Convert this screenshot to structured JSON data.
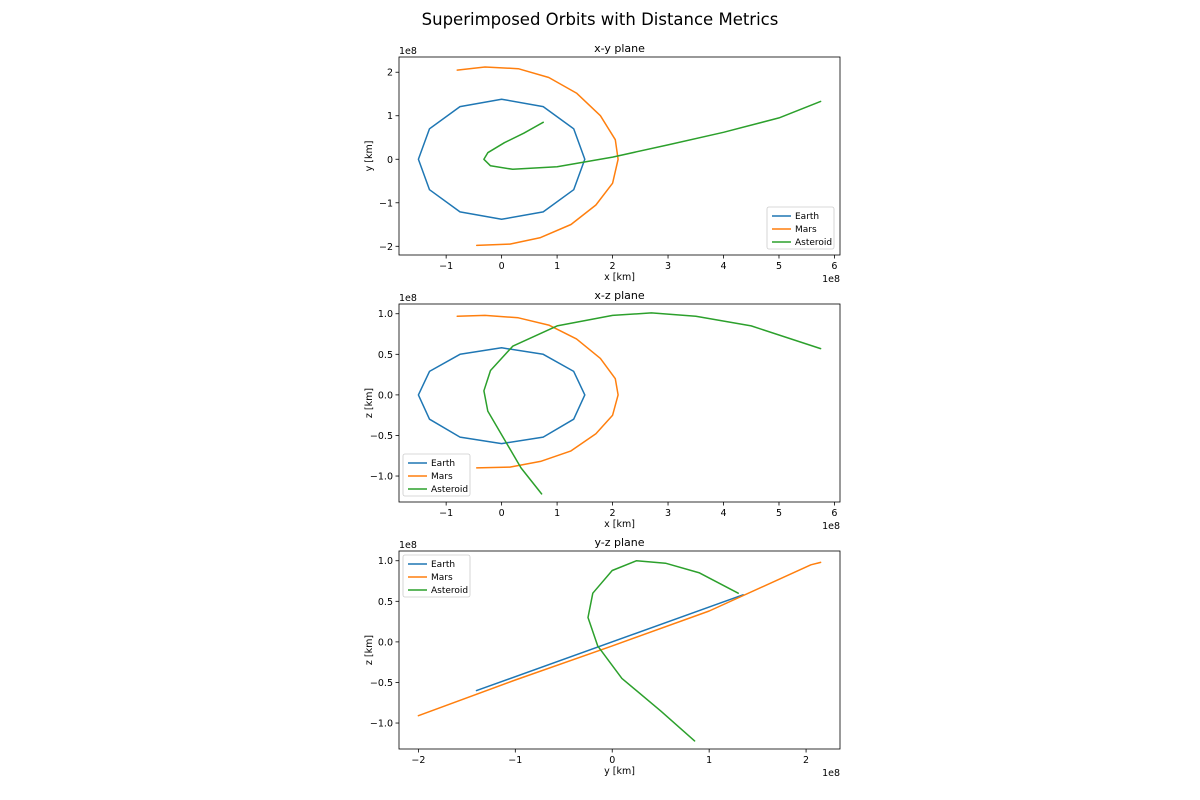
{
  "title": "Superimposed Orbits with Distance Metrics",
  "colors": {
    "Earth": "#1f77b4",
    "Mars": "#ff7f0e",
    "Asteroid": "#2ca02c"
  },
  "chart_data": [
    {
      "type": "line",
      "title": "x-y plane",
      "xlabel": "x [km]",
      "ylabel": "y [km]",
      "offset_label": "1e8",
      "x_offset_label": "1e8",
      "xlim": [
        -1.85,
        6.1
      ],
      "ylim": [
        -2.2,
        2.35
      ],
      "xticks": [
        -1,
        0,
        1,
        2,
        3,
        4,
        5,
        6
      ],
      "xtick_labels": [
        "−1",
        "0",
        "1",
        "2",
        "3",
        "4",
        "5",
        "6"
      ],
      "yticks": [
        -2,
        -1,
        0,
        1,
        2
      ],
      "ytick_labels": [
        "−2",
        "−1",
        "0",
        "1",
        "2"
      ],
      "legend": "lower-right",
      "grid": false,
      "series": [
        {
          "name": "Earth",
          "points": [
            [
              1.5,
              0
            ],
            [
              1.3,
              0.7
            ],
            [
              0.75,
              1.21
            ],
            [
              0,
              1.38
            ],
            [
              -0.75,
              1.21
            ],
            [
              -1.3,
              0.7
            ],
            [
              -1.5,
              0
            ],
            [
              -1.3,
              -0.7
            ],
            [
              -0.75,
              -1.21
            ],
            [
              0,
              -1.38
            ],
            [
              0.75,
              -1.21
            ],
            [
              1.3,
              -0.7
            ],
            [
              1.5,
              0
            ]
          ]
        },
        {
          "name": "Mars",
          "points": [
            [
              -0.8,
              2.05
            ],
            [
              -0.3,
              2.12
            ],
            [
              0.3,
              2.08
            ],
            [
              0.85,
              1.88
            ],
            [
              1.35,
              1.52
            ],
            [
              1.78,
              1.0
            ],
            [
              2.05,
              0.45
            ],
            [
              2.1,
              0
            ],
            [
              2.0,
              -0.55
            ],
            [
              1.7,
              -1.05
            ],
            [
              1.25,
              -1.5
            ],
            [
              0.7,
              -1.8
            ],
            [
              0.15,
              -1.95
            ],
            [
              -0.45,
              -1.98
            ]
          ]
        },
        {
          "name": "Asteroid",
          "points": [
            [
              0.75,
              0.85
            ],
            [
              0.4,
              0.6
            ],
            [
              0.05,
              0.38
            ],
            [
              -0.25,
              0.15
            ],
            [
              -0.32,
              0
            ],
            [
              -0.2,
              -0.15
            ],
            [
              0.2,
              -0.23
            ],
            [
              1.0,
              -0.17
            ],
            [
              2.0,
              0.05
            ],
            [
              3.0,
              0.33
            ],
            [
              4.0,
              0.62
            ],
            [
              5.0,
              0.95
            ],
            [
              5.75,
              1.33
            ]
          ]
        }
      ]
    },
    {
      "type": "line",
      "title": "x-z plane",
      "xlabel": "x [km]",
      "ylabel": "z [km]",
      "offset_label": "1e8",
      "x_offset_label": "1e8",
      "xlim": [
        -1.85,
        6.1
      ],
      "ylim": [
        -1.32,
        1.12
      ],
      "xticks": [
        -1,
        0,
        1,
        2,
        3,
        4,
        5,
        6
      ],
      "xtick_labels": [
        "−1",
        "0",
        "1",
        "2",
        "3",
        "4",
        "5",
        "6"
      ],
      "yticks": [
        -1.0,
        -0.5,
        0.0,
        0.5,
        1.0
      ],
      "ytick_labels": [
        "−1.0",
        "−0.5",
        "0.0",
        "0.5",
        "1.0"
      ],
      "legend": "lower-left",
      "grid": false,
      "series": [
        {
          "name": "Earth",
          "points": [
            [
              1.5,
              0
            ],
            [
              1.3,
              0.29
            ],
            [
              0.75,
              0.5
            ],
            [
              0,
              0.58
            ],
            [
              -0.75,
              0.5
            ],
            [
              -1.3,
              0.29
            ],
            [
              -1.5,
              0
            ],
            [
              -1.3,
              -0.3
            ],
            [
              -0.75,
              -0.52
            ],
            [
              0,
              -0.6
            ],
            [
              0.75,
              -0.52
            ],
            [
              1.3,
              -0.3
            ],
            [
              1.5,
              0
            ]
          ]
        },
        {
          "name": "Mars",
          "points": [
            [
              -0.8,
              0.97
            ],
            [
              -0.3,
              0.98
            ],
            [
              0.3,
              0.95
            ],
            [
              0.85,
              0.86
            ],
            [
              1.35,
              0.69
            ],
            [
              1.78,
              0.45
            ],
            [
              2.05,
              0.2
            ],
            [
              2.1,
              0
            ],
            [
              2.0,
              -0.25
            ],
            [
              1.7,
              -0.48
            ],
            [
              1.25,
              -0.69
            ],
            [
              0.7,
              -0.82
            ],
            [
              0.15,
              -0.89
            ],
            [
              -0.45,
              -0.9
            ]
          ]
        },
        {
          "name": "Asteroid",
          "points": [
            [
              0.72,
              -1.22
            ],
            [
              0.35,
              -0.9
            ],
            [
              0.05,
              -0.55
            ],
            [
              -0.25,
              -0.2
            ],
            [
              -0.32,
              0.05
            ],
            [
              -0.2,
              0.3
            ],
            [
              0.2,
              0.6
            ],
            [
              1.0,
              0.85
            ],
            [
              2.0,
              0.98
            ],
            [
              2.7,
              1.01
            ],
            [
              3.5,
              0.97
            ],
            [
              4.5,
              0.85
            ],
            [
              5.75,
              0.57
            ]
          ]
        }
      ]
    },
    {
      "type": "line",
      "title": "y-z plane",
      "xlabel": "y [km]",
      "ylabel": "z [km]",
      "offset_label": "1e8",
      "x_offset_label": "1e8",
      "xlim": [
        -2.2,
        2.35
      ],
      "ylim": [
        -1.32,
        1.12
      ],
      "xticks": [
        -2,
        -1,
        0,
        1,
        2
      ],
      "xtick_labels": [
        "−2",
        "−1",
        "0",
        "1",
        "2"
      ],
      "yticks": [
        -1.0,
        -0.5,
        0.0,
        0.5,
        1.0
      ],
      "ytick_labels": [
        "−1.0",
        "−0.5",
        "0.0",
        "0.5",
        "1.0"
      ],
      "legend": "upper-left",
      "grid": false,
      "series": [
        {
          "name": "Earth",
          "points": [
            [
              -1.4,
              -0.6
            ],
            [
              1.35,
              0.58
            ]
          ]
        },
        {
          "name": "Mars",
          "points": [
            [
              -2.0,
              -0.91
            ],
            [
              -1.0,
              -0.47
            ],
            [
              0,
              -0.05
            ],
            [
              1.0,
              0.38
            ],
            [
              2.05,
              0.95
            ],
            [
              2.15,
              0.98
            ],
            [
              2.12,
              0.97
            ]
          ]
        },
        {
          "name": "Asteroid",
          "points": [
            [
              0.85,
              -1.22
            ],
            [
              0.5,
              -0.85
            ],
            [
              0.1,
              -0.45
            ],
            [
              -0.15,
              -0.05
            ],
            [
              -0.25,
              0.3
            ],
            [
              -0.2,
              0.6
            ],
            [
              0.0,
              0.88
            ],
            [
              0.25,
              1.0
            ],
            [
              0.55,
              0.97
            ],
            [
              0.9,
              0.85
            ],
            [
              1.3,
              0.6
            ]
          ]
        }
      ]
    }
  ]
}
